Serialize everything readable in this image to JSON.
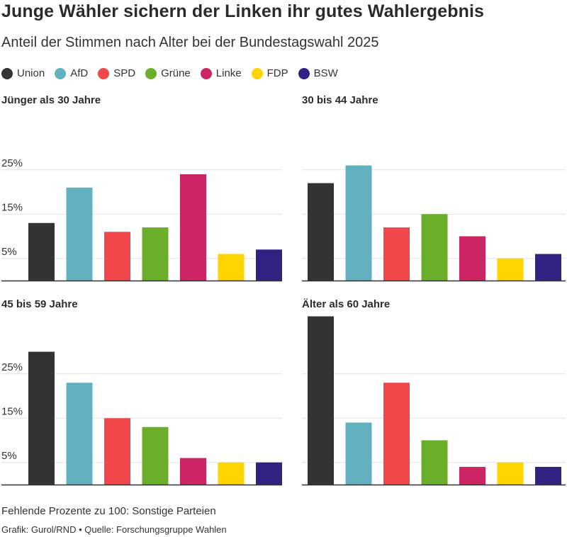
{
  "title": "Junge Wähler sichern der Linken ihr gutes Wahlergebnis",
  "subtitle": "Anteil der Stimmen nach Alter bei der Bundestagswahl 2025",
  "legend": [
    {
      "name": "Union",
      "color": "#333333"
    },
    {
      "name": "AfD",
      "color": "#62b1c0"
    },
    {
      "name": "SPD",
      "color": "#f1464a"
    },
    {
      "name": "Grüne",
      "color": "#6aae2a"
    },
    {
      "name": "Linke",
      "color": "#cc2566"
    },
    {
      "name": "FDP",
      "color": "#ffd400"
    },
    {
      "name": "BSW",
      "color": "#2f2280"
    }
  ],
  "footnote": "Fehlende Prozente zu 100: Sonstige Parteien",
  "source": "Grafik: Gurol/RND • Quelle: Forschungsgruppe Wahlen",
  "chart_data": [
    {
      "type": "bar",
      "title": "Jünger als 30 Jahre",
      "categories": [
        "Union",
        "AfD",
        "SPD",
        "Grüne",
        "Linke",
        "FDP",
        "BSW"
      ],
      "values": [
        13,
        21,
        11,
        12,
        24,
        6,
        7
      ],
      "yticks": [
        "5%",
        "15%",
        "25%"
      ],
      "ytick_values": [
        5,
        15,
        25
      ],
      "ylim": [
        0,
        38
      ],
      "grid": true
    },
    {
      "type": "bar",
      "title": "30 bis 44 Jahre",
      "categories": [
        "Union",
        "AfD",
        "SPD",
        "Grüne",
        "Linke",
        "FDP",
        "BSW"
      ],
      "values": [
        22,
        26,
        12,
        15,
        10,
        5,
        6
      ],
      "yticks": [
        "5%",
        "15%",
        "25%"
      ],
      "ytick_values": [
        5,
        15,
        25
      ],
      "ylim": [
        0,
        38
      ],
      "grid": true
    },
    {
      "type": "bar",
      "title": "45 bis 59 Jahre",
      "categories": [
        "Union",
        "AfD",
        "SPD",
        "Grüne",
        "Linke",
        "FDP",
        "BSW"
      ],
      "values": [
        30,
        23,
        15,
        13,
        6,
        5,
        5
      ],
      "yticks": [
        "5%",
        "15%",
        "25%"
      ],
      "ytick_values": [
        5,
        15,
        25
      ],
      "ylim": [
        0,
        38
      ],
      "grid": true
    },
    {
      "type": "bar",
      "title": "Älter als 60 Jahre",
      "categories": [
        "Union",
        "AfD",
        "SPD",
        "Grüne",
        "Linke",
        "FDP",
        "BSW"
      ],
      "values": [
        38,
        14,
        23,
        10,
        4,
        5,
        4
      ],
      "yticks": [
        "5%",
        "15%",
        "25%"
      ],
      "ytick_values": [
        5,
        15,
        25
      ],
      "ylim": [
        0,
        38
      ],
      "grid": true
    }
  ]
}
